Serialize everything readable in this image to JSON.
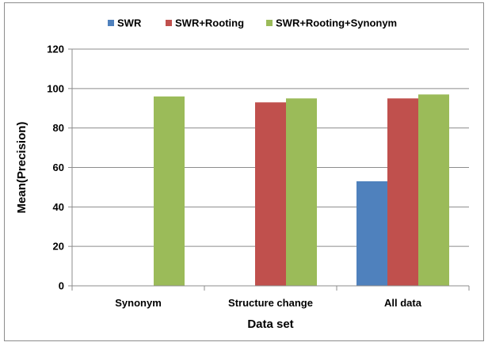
{
  "chart_data": {
    "type": "bar",
    "categories": [
      "Synonym",
      "Structure change",
      "All data"
    ],
    "series": [
      {
        "name": "SWR",
        "color": "#4f81bd",
        "values": [
          null,
          null,
          53
        ]
      },
      {
        "name": "SWR+Rooting",
        "color": "#c0504d",
        "values": [
          null,
          93,
          95
        ]
      },
      {
        "name": "SWR+Rooting+Synonym",
        "color": "#9bbb59",
        "values": [
          96,
          95,
          97
        ]
      }
    ],
    "title": "",
    "xlabel": "Data set",
    "ylabel": "Mean(Precision)",
    "ylim": [
      0,
      120
    ],
    "yticks": [
      0,
      20,
      40,
      60,
      80,
      100,
      120
    ],
    "grid": true,
    "legend_position": "top"
  }
}
